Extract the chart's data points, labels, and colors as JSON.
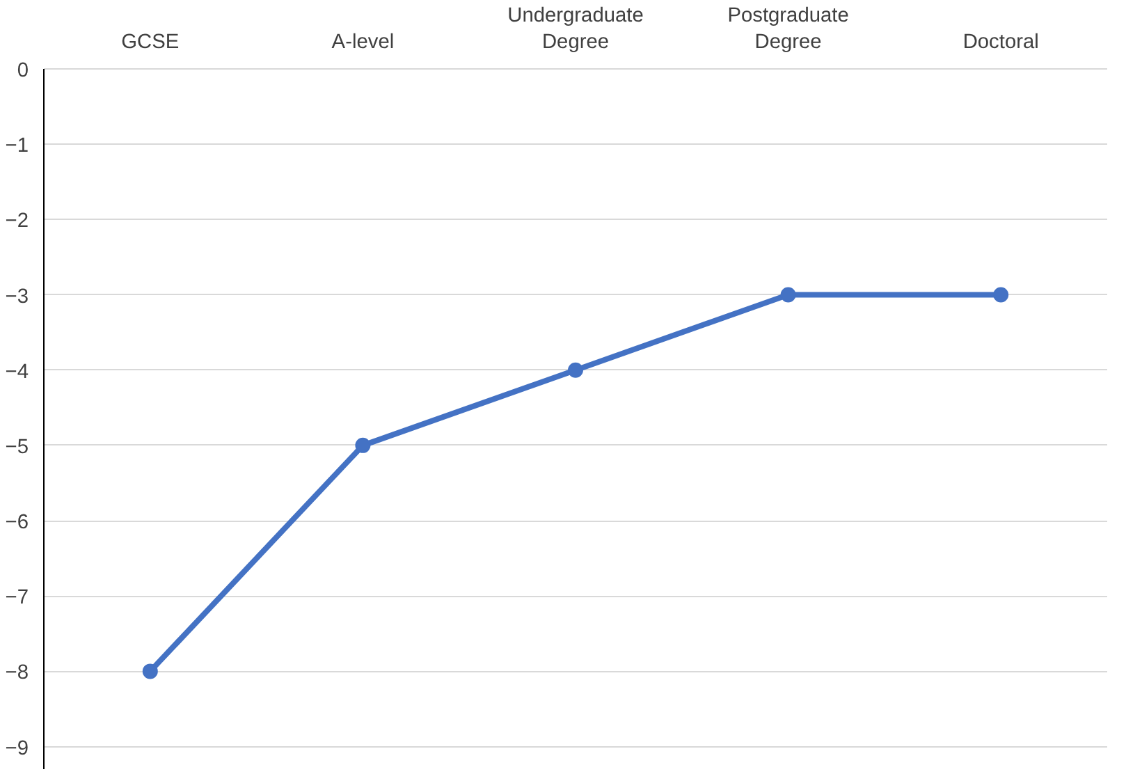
{
  "chart_data": {
    "type": "line",
    "categories": [
      "GCSE",
      "A-level",
      "Undergraduate Degree",
      "Postgraduate Degree",
      "Doctoral"
    ],
    "series": [
      {
        "color": "#4472c4",
        "values": [
          -8,
          -5,
          -4,
          -3,
          -3
        ]
      }
    ],
    "ylim": [
      -9.3,
      0
    ],
    "yticks": [
      0,
      -1,
      -2,
      -3,
      -4,
      -5,
      -6,
      -7,
      -8,
      -9
    ],
    "grid": "y",
    "marker": "circle",
    "line_style": "solid"
  }
}
